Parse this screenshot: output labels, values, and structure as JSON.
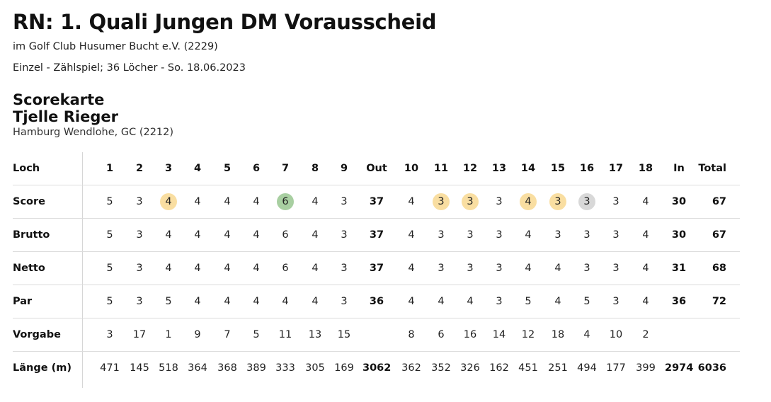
{
  "header": {
    "title": "RN: 1. Quali Jungen DM Vorausscheid",
    "club_line": "im Golf Club Husumer Bucht e.V. (2229)",
    "format_line": "Einzel - Zählspiel; 36 Löcher - So. 18.06.2023"
  },
  "scorecard": {
    "heading": "Scorekarte",
    "player": "Tjelle Rieger",
    "player_club": "Hamburg Wendlohe, GC (2212)"
  },
  "colors": {
    "yellow": "#f9dea1",
    "green": "#a8cfa1",
    "grey": "#d8d8d8"
  },
  "table": {
    "rows": [
      {
        "label": "Loch",
        "cells": [
          "1",
          "2",
          "3",
          "4",
          "5",
          "6",
          "7",
          "8",
          "9",
          "Out",
          "10",
          "11",
          "12",
          "13",
          "14",
          "15",
          "16",
          "17",
          "18",
          "In",
          "Total"
        ]
      },
      {
        "label": "Score",
        "cells": [
          "5",
          "3",
          "4",
          "4",
          "4",
          "4",
          "6",
          "4",
          "3",
          "37",
          "4",
          "3",
          "3",
          "3",
          "4",
          "3",
          "3",
          "3",
          "4",
          "30",
          "67"
        ],
        "highlights": [
          "",
          "",
          "yellow",
          "",
          "",
          "",
          "green",
          "",
          "",
          "",
          "",
          "yellow",
          "yellow",
          "",
          "yellow",
          "yellow",
          "grey",
          "",
          "",
          "",
          ""
        ]
      },
      {
        "label": "Brutto",
        "cells": [
          "5",
          "3",
          "4",
          "4",
          "4",
          "4",
          "6",
          "4",
          "3",
          "37",
          "4",
          "3",
          "3",
          "3",
          "4",
          "3",
          "3",
          "3",
          "4",
          "30",
          "67"
        ]
      },
      {
        "label": "Netto",
        "cells": [
          "5",
          "3",
          "4",
          "4",
          "4",
          "4",
          "6",
          "4",
          "3",
          "37",
          "4",
          "3",
          "3",
          "3",
          "4",
          "4",
          "3",
          "3",
          "4",
          "31",
          "68"
        ]
      },
      {
        "label": "Par",
        "cells": [
          "5",
          "3",
          "5",
          "4",
          "4",
          "4",
          "4",
          "4",
          "3",
          "36",
          "4",
          "4",
          "4",
          "3",
          "5",
          "4",
          "5",
          "3",
          "4",
          "36",
          "72"
        ]
      },
      {
        "label": "Vorgabe",
        "cells": [
          "3",
          "17",
          "1",
          "9",
          "7",
          "5",
          "11",
          "13",
          "15",
          "",
          "8",
          "6",
          "16",
          "14",
          "12",
          "18",
          "4",
          "10",
          "2",
          "",
          ""
        ]
      },
      {
        "label": "Länge (m)",
        "cells": [
          "471",
          "145",
          "518",
          "364",
          "368",
          "389",
          "333",
          "305",
          "169",
          "3062",
          "362",
          "352",
          "326",
          "162",
          "451",
          "251",
          "494",
          "177",
          "399",
          "2974",
          "6036"
        ]
      }
    ]
  }
}
